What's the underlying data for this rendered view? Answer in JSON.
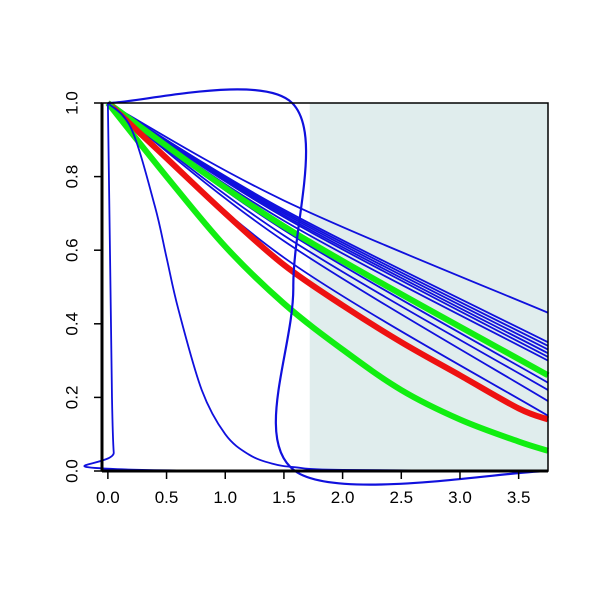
{
  "chart_data": {
    "type": "line",
    "title": "",
    "xlabel": "",
    "ylabel": "",
    "xlim": [
      -0.05,
      3.75
    ],
    "ylim": [
      0.0,
      1.0
    ],
    "x_ticks": [
      {
        "value": 0.0,
        "label": "0.0"
      },
      {
        "value": 0.5,
        "label": "0.5"
      },
      {
        "value": 1.0,
        "label": "1.0"
      },
      {
        "value": 1.5,
        "label": "1.5"
      },
      {
        "value": 2.0,
        "label": "2.0"
      },
      {
        "value": 2.5,
        "label": "2.5"
      },
      {
        "value": 3.0,
        "label": "3.0"
      },
      {
        "value": 3.5,
        "label": "3.5"
      }
    ],
    "y_ticks": [
      {
        "value": 0.0,
        "label": "0.0"
      },
      {
        "value": 0.2,
        "label": "0.2"
      },
      {
        "value": 0.4,
        "label": "0.4"
      },
      {
        "value": 0.6,
        "label": "0.6"
      },
      {
        "value": 0.8,
        "label": "0.8"
      },
      {
        "value": 1.0,
        "label": "1.0"
      }
    ],
    "shaded_region": {
      "x": [
        1.72,
        3.75
      ],
      "y": [
        0.0,
        1.0
      ],
      "color": "#e0eded"
    },
    "grid": false,
    "legend": "none",
    "colors": {
      "blue": "#1010dd",
      "red": "#ee1111",
      "green": "#11ee11",
      "axis": "#000000"
    },
    "series": [
      {
        "color": "blue",
        "weight": "thin",
        "points": [
          [
            0,
            1
          ],
          [
            1.5,
            0.735
          ],
          [
            3.75,
            0.43
          ]
        ]
      },
      {
        "color": "blue",
        "weight": "thin",
        "points": [
          [
            0,
            1
          ],
          [
            1.5,
            0.71
          ],
          [
            3.75,
            0.35
          ]
        ]
      },
      {
        "color": "blue",
        "weight": "thin",
        "points": [
          [
            0,
            1
          ],
          [
            1.5,
            0.705
          ],
          [
            3.75,
            0.34
          ]
        ]
      },
      {
        "color": "blue",
        "weight": "thin",
        "points": [
          [
            0,
            1
          ],
          [
            1.5,
            0.7
          ],
          [
            3.75,
            0.33
          ]
        ]
      },
      {
        "color": "blue",
        "weight": "thin",
        "points": [
          [
            0,
            1
          ],
          [
            1.5,
            0.695
          ],
          [
            3.75,
            0.32
          ]
        ]
      },
      {
        "color": "blue",
        "weight": "thin",
        "points": [
          [
            0,
            1
          ],
          [
            1.5,
            0.69
          ],
          [
            3.75,
            0.31
          ]
        ]
      },
      {
        "color": "blue",
        "weight": "thin",
        "points": [
          [
            0,
            1
          ],
          [
            1.5,
            0.68
          ],
          [
            3.75,
            0.3
          ]
        ]
      },
      {
        "color": "blue",
        "weight": "thin",
        "points": [
          [
            0,
            1
          ],
          [
            1.5,
            0.655
          ],
          [
            3.75,
            0.24
          ]
        ]
      },
      {
        "color": "blue",
        "weight": "thin",
        "points": [
          [
            0,
            1
          ],
          [
            1.5,
            0.64
          ],
          [
            3.75,
            0.22
          ]
        ]
      },
      {
        "color": "blue",
        "weight": "thin",
        "points": [
          [
            0,
            1
          ],
          [
            1.5,
            0.625
          ],
          [
            3.75,
            0.19
          ]
        ]
      },
      {
        "color": "blue",
        "weight": "thin",
        "points": [
          [
            0,
            1
          ],
          [
            1.5,
            0.58
          ],
          [
            3.75,
            0.15
          ]
        ]
      },
      {
        "color": "green",
        "weight": "thick",
        "points": [
          [
            0,
            1
          ],
          [
            1.5,
            0.665
          ],
          [
            3.75,
            0.26
          ]
        ]
      },
      {
        "color": "red",
        "weight": "thick",
        "points": [
          [
            0,
            1
          ],
          [
            0.5,
            0.85
          ],
          [
            1.0,
            0.7
          ],
          [
            1.5,
            0.56
          ],
          [
            2.0,
            0.45
          ],
          [
            2.5,
            0.35
          ],
          [
            3.0,
            0.26
          ],
          [
            3.5,
            0.17
          ],
          [
            3.75,
            0.14
          ]
        ]
      },
      {
        "color": "green",
        "weight": "thick",
        "points": [
          [
            0,
            1
          ],
          [
            0.5,
            0.8
          ],
          [
            1.0,
            0.61
          ],
          [
            1.5,
            0.455
          ],
          [
            2.0,
            0.33
          ],
          [
            2.5,
            0.22
          ],
          [
            3.0,
            0.14
          ],
          [
            3.5,
            0.08
          ],
          [
            3.75,
            0.055
          ]
        ]
      },
      {
        "color": "blue",
        "weight": "thin",
        "points": [
          [
            0,
            1
          ],
          [
            0.2,
            0.93
          ],
          [
            0.4,
            0.72
          ],
          [
            0.5,
            0.58
          ],
          [
            0.6,
            0.44
          ],
          [
            0.8,
            0.22
          ],
          [
            1.0,
            0.1
          ],
          [
            1.2,
            0.045
          ],
          [
            1.4,
            0.02
          ],
          [
            1.6,
            0.01
          ],
          [
            2.0,
            0.003
          ],
          [
            3.75,
            0.0
          ]
        ]
      },
      {
        "color": "blue",
        "weight": "thin",
        "points": [
          [
            0,
            1
          ],
          [
            0.02,
            0.55
          ],
          [
            0.035,
            0.2
          ],
          [
            0.05,
            0.05
          ],
          [
            0.08,
            0.005
          ],
          [
            3.75,
            0.0
          ]
        ]
      },
      {
        "color": "blue",
        "weight": "medium",
        "points": [
          [
            0,
            1
          ],
          [
            1.57,
            1.0
          ],
          [
            1.58,
            0.5
          ],
          [
            1.595,
            0.0
          ],
          [
            3.75,
            0.0
          ]
        ]
      }
    ]
  }
}
